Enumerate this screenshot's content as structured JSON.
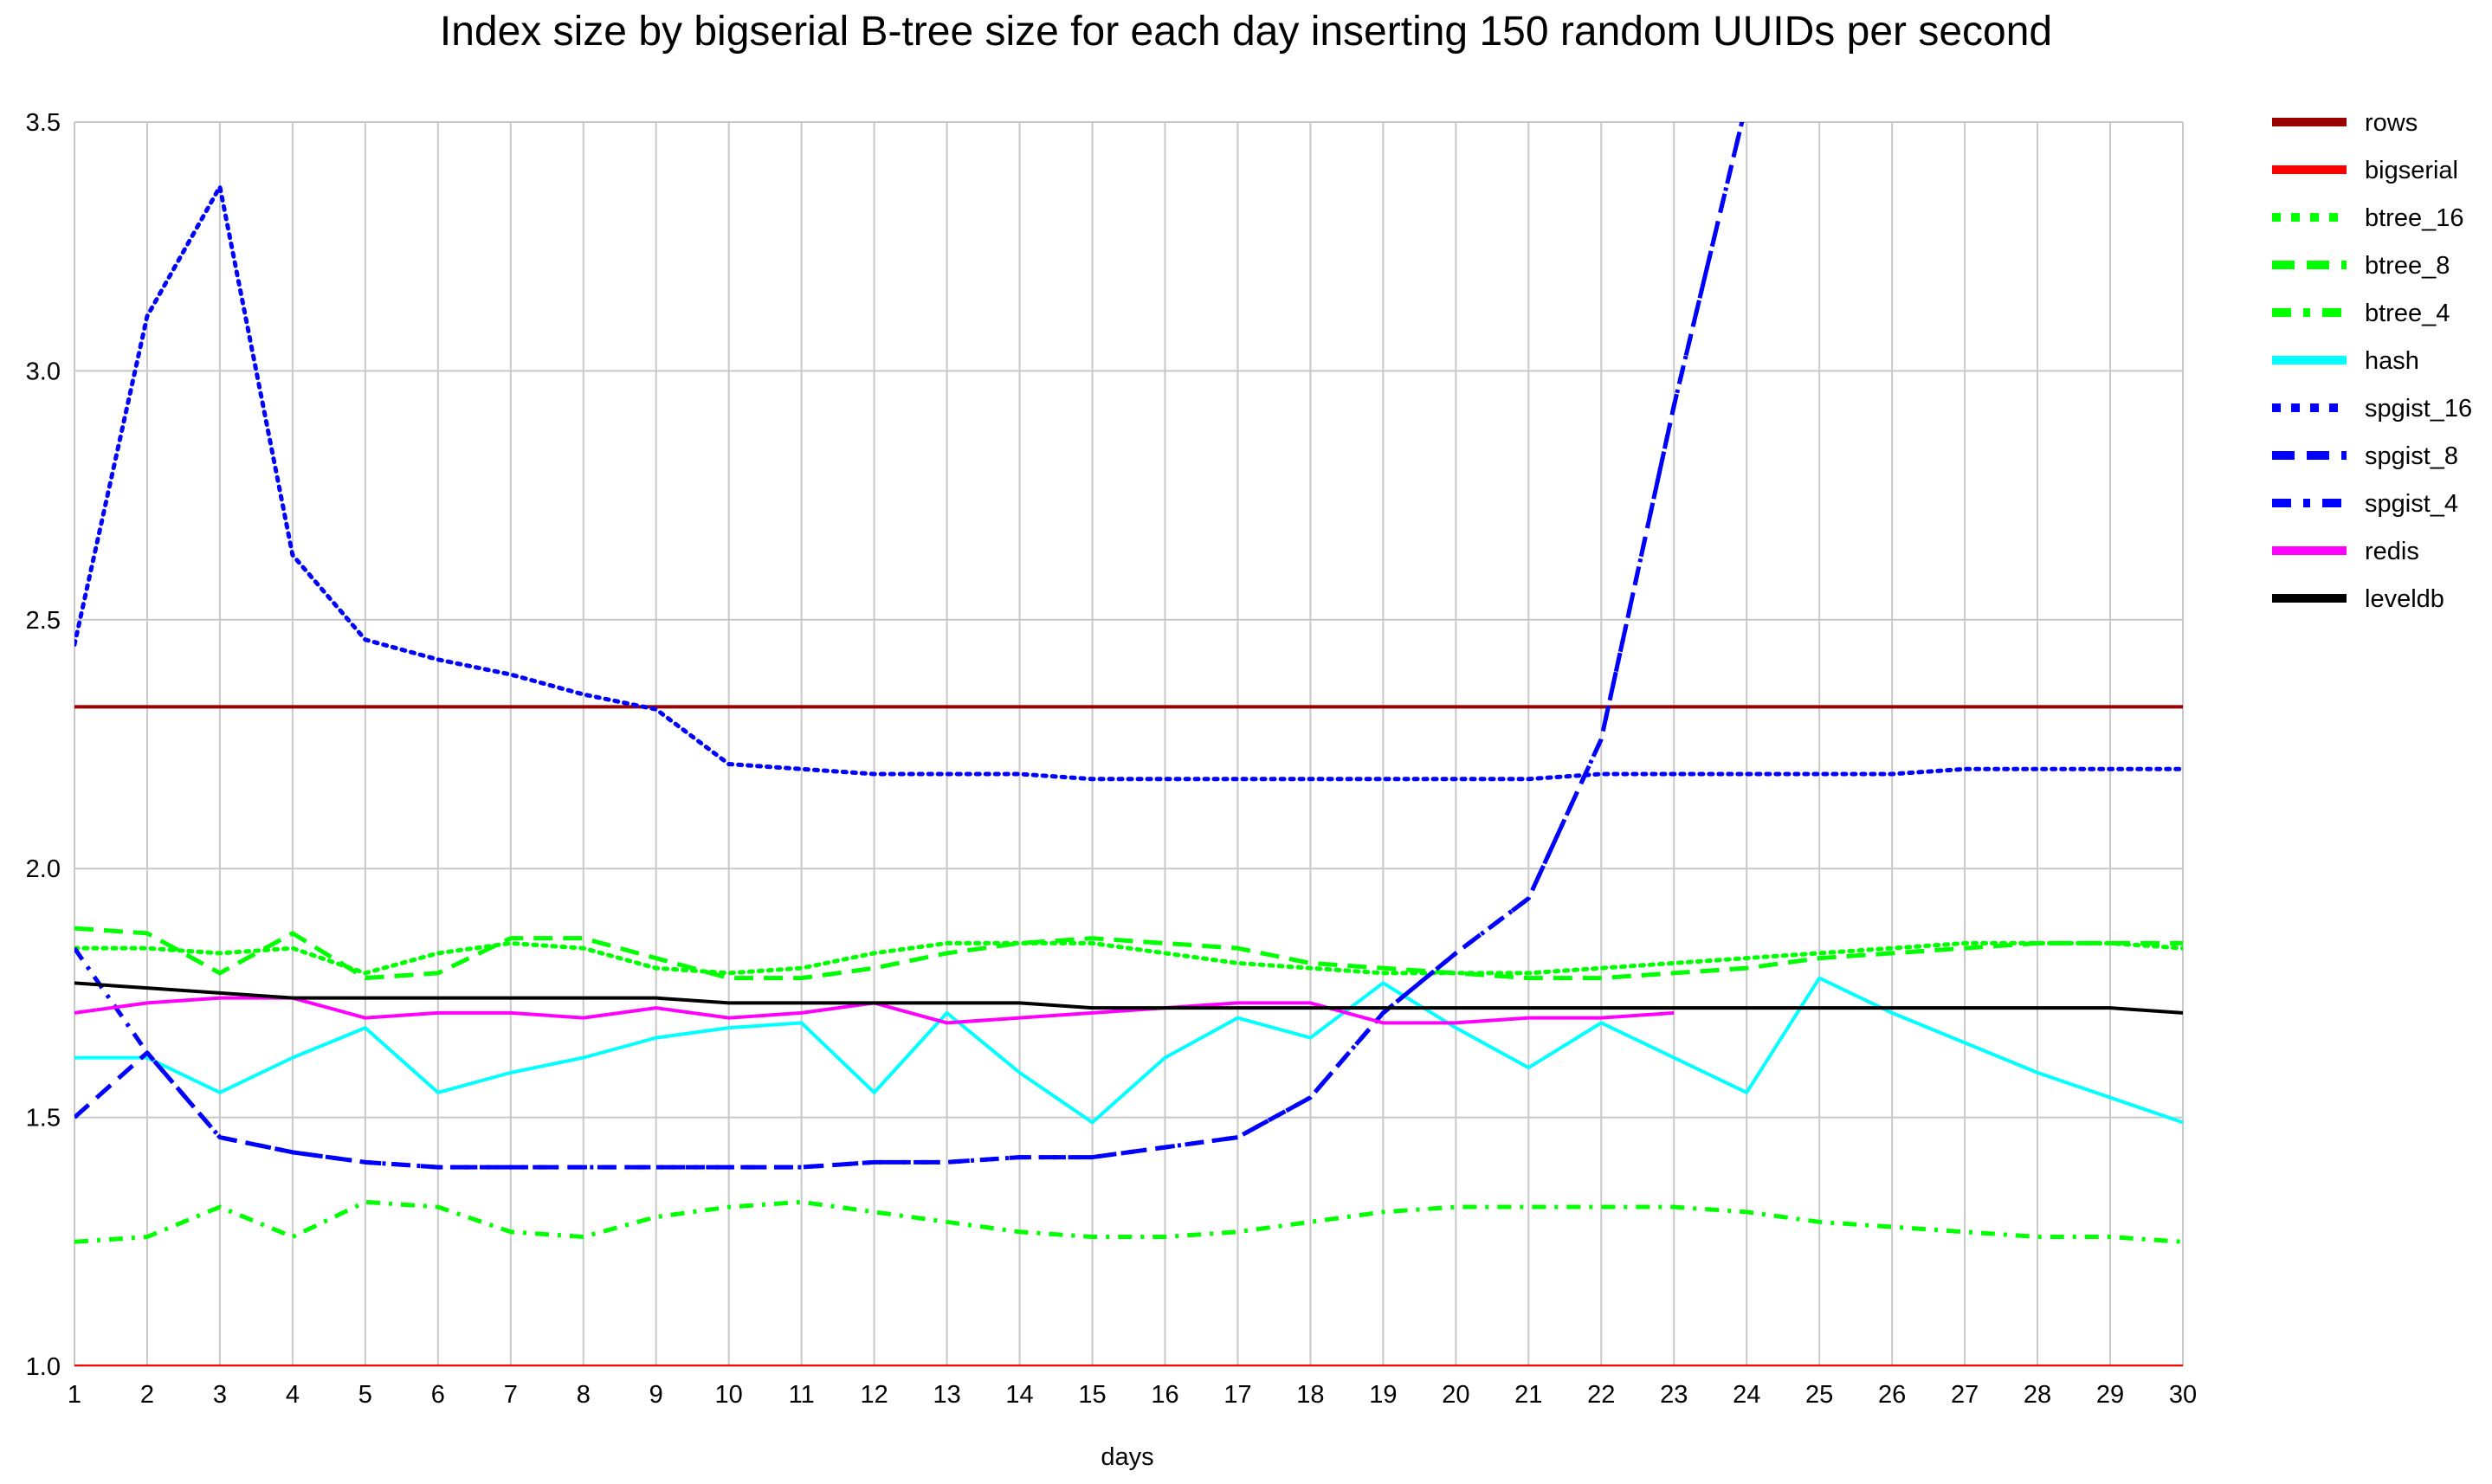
{
  "chart_data": {
    "type": "line",
    "title": "Index size by bigserial B-tree size for each day inserting 150 random UUIDs per second",
    "xlabel": "days",
    "ylabel": "",
    "xlim": [
      1,
      30
    ],
    "ylim": [
      1.0,
      3.5
    ],
    "x": [
      1,
      2,
      3,
      4,
      5,
      6,
      7,
      8,
      9,
      10,
      11,
      12,
      13,
      14,
      15,
      16,
      17,
      18,
      19,
      20,
      21,
      22,
      23,
      24,
      25,
      26,
      27,
      28,
      29,
      30
    ],
    "x_tick_labels": [
      "1",
      "2",
      "3",
      "4",
      "5",
      "6",
      "7",
      "8",
      "9",
      "10",
      "11",
      "12",
      "13",
      "14",
      "15",
      "16",
      "17",
      "18",
      "19",
      "20",
      "21",
      "22",
      "23",
      "24",
      "25",
      "26",
      "27",
      "28",
      "29",
      "30"
    ],
    "y_ticks": [
      1.0,
      1.5,
      2.0,
      2.5,
      3.0,
      3.5
    ],
    "y_tick_labels": [
      "1.0",
      "1.5",
      "2.0",
      "2.5",
      "3.0",
      "3.5"
    ],
    "grid": true,
    "legend_position": "right",
    "series": [
      {
        "name": "rows",
        "color": "#990000",
        "style": "solid",
        "values": [
          2.325,
          2.325,
          2.325,
          2.325,
          2.325,
          2.325,
          2.325,
          2.325,
          2.325,
          2.325,
          2.325,
          2.325,
          2.325,
          2.325,
          2.325,
          2.325,
          2.325,
          2.325,
          2.325,
          2.325,
          2.325,
          2.325,
          2.325,
          2.325,
          2.325,
          2.325,
          2.325,
          2.325,
          2.325,
          2.325
        ]
      },
      {
        "name": "bigserial",
        "color": "#ff0000",
        "style": "solid",
        "values": [
          1.0,
          1.0,
          1.0,
          1.0,
          1.0,
          1.0,
          1.0,
          1.0,
          1.0,
          1.0,
          1.0,
          1.0,
          1.0,
          1.0,
          1.0,
          1.0,
          1.0,
          1.0,
          1.0,
          1.0,
          1.0,
          1.0,
          1.0,
          1.0,
          1.0,
          1.0,
          1.0,
          1.0,
          1.0,
          1.0
        ]
      },
      {
        "name": "btree_16",
        "color": "#00ff00",
        "style": "dot",
        "values": [
          1.84,
          1.84,
          1.83,
          1.84,
          1.79,
          1.83,
          1.85,
          1.84,
          1.8,
          1.79,
          1.8,
          1.83,
          1.85,
          1.85,
          1.85,
          1.83,
          1.81,
          1.8,
          1.79,
          1.79,
          1.79,
          1.8,
          1.81,
          1.82,
          1.83,
          1.84,
          1.85,
          1.85,
          1.85,
          1.84
        ]
      },
      {
        "name": "btree_8",
        "color": "#00ff00",
        "style": "dash",
        "values": [
          1.88,
          1.87,
          1.79,
          1.87,
          1.78,
          1.79,
          1.86,
          1.86,
          1.82,
          1.78,
          1.78,
          1.8,
          1.83,
          1.85,
          1.86,
          1.85,
          1.84,
          1.81,
          1.8,
          1.79,
          1.78,
          1.78,
          1.79,
          1.8,
          1.82,
          1.83,
          1.84,
          1.85,
          1.85,
          1.85
        ]
      },
      {
        "name": "btree_4",
        "color": "#00ff00",
        "style": "dashdot",
        "values": [
          1.25,
          1.26,
          1.32,
          1.26,
          1.33,
          1.32,
          1.27,
          1.26,
          1.3,
          1.32,
          1.33,
          1.31,
          1.29,
          1.27,
          1.26,
          1.26,
          1.27,
          1.29,
          1.31,
          1.32,
          1.32,
          1.32,
          1.32,
          1.31,
          1.29,
          1.28,
          1.27,
          1.26,
          1.26,
          1.25
        ]
      },
      {
        "name": "hash",
        "color": "#00ffff",
        "style": "solid",
        "values": [
          1.62,
          1.62,
          1.55,
          1.62,
          1.68,
          1.55,
          1.59,
          1.62,
          1.66,
          1.68,
          1.69,
          1.55,
          1.71,
          1.59,
          1.49,
          1.62,
          1.7,
          1.66,
          1.77,
          1.68,
          1.6,
          1.69,
          1.62,
          1.55,
          1.78,
          1.71,
          1.65,
          1.59,
          1.54,
          1.49
        ]
      },
      {
        "name": "spgist_16",
        "color": "#0000ff",
        "style": "dot",
        "values": [
          2.45,
          3.11,
          3.37,
          2.63,
          2.46,
          2.42,
          2.39,
          2.35,
          2.32,
          2.21,
          2.2,
          2.19,
          2.19,
          2.19,
          2.18,
          2.18,
          2.18,
          2.18,
          2.18,
          2.18,
          2.18,
          2.19,
          2.19,
          2.19,
          2.19,
          2.19,
          2.2,
          2.2,
          2.2,
          2.2
        ]
      },
      {
        "name": "spgist_8",
        "color": "#0000ff",
        "style": "dash",
        "values": [
          1.5,
          1.63,
          1.46,
          1.43,
          1.41,
          1.4,
          1.4,
          1.4,
          1.4,
          1.4,
          1.4,
          1.41,
          1.41,
          1.42,
          1.42,
          1.44,
          1.46,
          1.54,
          1.71,
          1.83,
          1.94,
          2.26,
          2.93,
          3.54,
          null,
          null,
          null,
          null,
          null,
          null
        ]
      },
      {
        "name": "spgist_4",
        "color": "#0000ff",
        "style": "dashdot",
        "values": [
          1.84,
          1.63,
          1.46,
          1.43,
          1.41,
          1.4,
          1.4,
          1.4,
          1.4,
          1.4,
          1.4,
          1.41,
          1.41,
          1.42,
          1.42,
          1.44,
          1.46,
          1.54,
          1.71,
          1.83,
          1.94,
          2.26,
          2.93,
          3.54,
          null,
          null,
          null,
          null,
          null,
          null
        ]
      },
      {
        "name": "redis",
        "color": "#ff00ff",
        "style": "solid",
        "values": [
          1.71,
          1.73,
          1.74,
          1.74,
          1.7,
          1.71,
          1.71,
          1.7,
          1.72,
          1.7,
          1.71,
          1.73,
          1.69,
          1.7,
          1.71,
          1.72,
          1.73,
          1.73,
          1.69,
          1.69,
          1.7,
          1.7,
          1.71,
          null,
          null,
          null,
          null,
          null,
          null,
          null
        ]
      },
      {
        "name": "leveldb",
        "color": "#000000",
        "style": "solid",
        "values": [
          1.77,
          1.76,
          1.75,
          1.74,
          1.74,
          1.74,
          1.74,
          1.74,
          1.74,
          1.73,
          1.73,
          1.73,
          1.73,
          1.73,
          1.72,
          1.72,
          1.72,
          1.72,
          1.72,
          1.72,
          1.72,
          1.72,
          1.72,
          1.72,
          1.72,
          1.72,
          1.72,
          1.72,
          1.72,
          1.71
        ]
      }
    ]
  }
}
